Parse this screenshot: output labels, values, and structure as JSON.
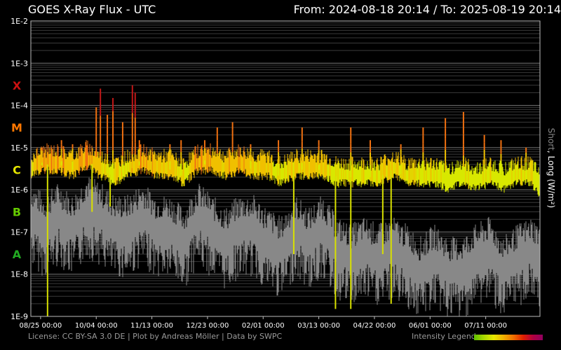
{
  "header": {
    "title": "GOES X-Ray Flux - UTC",
    "range": "From: 2024-08-18 20:14  /  To: 2025-08-19 20:14"
  },
  "chart_data": {
    "type": "line",
    "title": "GOES X-Ray Flux - UTC",
    "ylabel_short": "Short",
    "ylabel_long": ", Long (W/m²)",
    "yscale": "log",
    "ylim": [
      1e-09,
      0.01
    ],
    "y_ticks": [
      "1E-2",
      "1E-3",
      "1E-4",
      "1E-5",
      "1E-6",
      "1E-7",
      "1E-8",
      "1E-9"
    ],
    "flare_classes": [
      {
        "label": "X",
        "color": "#cc1111",
        "flux": 0.0003
      },
      {
        "label": "M",
        "color": "#ff7700",
        "flux": 3e-05
      },
      {
        "label": "C",
        "color": "#e6e600",
        "flux": 3e-06
      },
      {
        "label": "B",
        "color": "#66cc00",
        "flux": 3e-07
      },
      {
        "label": "A",
        "color": "#22aa22",
        "flux": 3e-08
      }
    ],
    "x_ticks": [
      "08/25 00:00",
      "10/04 00:00",
      "11/13 00:00",
      "12/23 00:00",
      "02/01 00:00",
      "03/13 00:00",
      "04/22 00:00",
      "06/01 00:00",
      "07/11 00:00"
    ],
    "x_tick_days": [
      7,
      47,
      87,
      127,
      167,
      207,
      247,
      287,
      327
    ],
    "x_days_total": 366,
    "grid": true,
    "series": [
      {
        "name": "Long",
        "color": "#d8e000",
        "days": [
          0,
          10,
          20,
          30,
          40,
          50,
          60,
          70,
          80,
          90,
          100,
          110,
          120,
          130,
          140,
          150,
          160,
          170,
          180,
          190,
          200,
          210,
          220,
          230,
          240,
          250,
          260,
          270,
          280,
          290,
          300,
          310,
          320,
          330,
          340,
          350,
          360,
          366
        ],
        "values": [
          3e-06,
          4e-06,
          4e-06,
          3e-06,
          5e-06,
          3e-06,
          2e-06,
          3e-06,
          4e-06,
          3e-06,
          3e-06,
          2e-06,
          4e-06,
          4e-06,
          3e-06,
          4e-06,
          3e-06,
          3e-06,
          2e-06,
          3e-06,
          3e-06,
          3e-06,
          2e-06,
          2e-06,
          2e-06,
          2e-06,
          3e-06,
          2e-06,
          2e-06,
          2e-06,
          1.5e-06,
          2e-06,
          1.5e-06,
          2e-06,
          1.5e-06,
          2e-06,
          2e-06,
          1e-06
        ]
      },
      {
        "name": "Short",
        "color": "#888888",
        "days": [
          0,
          10,
          20,
          30,
          40,
          50,
          60,
          70,
          80,
          90,
          100,
          110,
          120,
          130,
          140,
          150,
          160,
          170,
          180,
          190,
          200,
          210,
          220,
          230,
          240,
          250,
          260,
          270,
          280,
          290,
          300,
          310,
          320,
          330,
          340,
          350,
          360,
          366
        ],
        "values": [
          2e-07,
          1e-07,
          2e-07,
          1e-07,
          3e-07,
          2e-07,
          1e-07,
          1e-07,
          2e-07,
          1e-07,
          1e-07,
          5e-08,
          2e-07,
          1e-07,
          5e-08,
          1e-07,
          1e-07,
          5e-08,
          3e-08,
          1e-07,
          5e-08,
          1e-07,
          3e-08,
          2e-08,
          3e-08,
          2e-08,
          3e-08,
          2e-08,
          1e-08,
          2e-08,
          1e-08,
          1e-08,
          2e-08,
          3e-08,
          1e-08,
          2e-08,
          3e-08,
          2e-08
        ]
      }
    ],
    "flares": [
      {
        "day": 8,
        "peak": 1e-05
      },
      {
        "day": 22,
        "peak": 1.5e-05
      },
      {
        "day": 30,
        "peak": 1.2e-05
      },
      {
        "day": 47,
        "peak": 9e-05
      },
      {
        "day": 50,
        "peak": 0.00025
      },
      {
        "day": 55,
        "peak": 6e-05
      },
      {
        "day": 59,
        "peak": 0.00015
      },
      {
        "day": 66,
        "peak": 4e-05
      },
      {
        "day": 73,
        "peak": 0.0003
      },
      {
        "day": 75,
        "peak": 0.0002
      },
      {
        "day": 78,
        "peak": 1.5e-05
      },
      {
        "day": 100,
        "peak": 1.2e-05
      },
      {
        "day": 108,
        "peak": 1.5e-05
      },
      {
        "day": 125,
        "peak": 1.5e-05
      },
      {
        "day": 134,
        "peak": 3e-05
      },
      {
        "day": 145,
        "peak": 4e-05
      },
      {
        "day": 158,
        "peak": 1.2e-05
      },
      {
        "day": 178,
        "peak": 1.5e-05
      },
      {
        "day": 195,
        "peak": 3e-05
      },
      {
        "day": 207,
        "peak": 1.5e-05
      },
      {
        "day": 230,
        "peak": 3e-05
      },
      {
        "day": 244,
        "peak": 1.5e-05
      },
      {
        "day": 266,
        "peak": 1.2e-05
      },
      {
        "day": 282,
        "peak": 3e-05
      },
      {
        "day": 298,
        "peak": 5e-05
      },
      {
        "day": 311,
        "peak": 7e-05
      },
      {
        "day": 326,
        "peak": 2e-05
      },
      {
        "day": 338,
        "peak": 1.5e-05
      },
      {
        "day": 356,
        "peak": 1e-05
      }
    ],
    "dips": [
      {
        "day": 12,
        "low": 1e-09
      },
      {
        "day": 44,
        "low": 3e-07
      },
      {
        "day": 57,
        "low": 4e-07
      },
      {
        "day": 189,
        "low": 3e-08
      },
      {
        "day": 219,
        "low": 1.5e-09
      },
      {
        "day": 230,
        "low": 1.5e-09
      },
      {
        "day": 253,
        "low": 3e-08
      },
      {
        "day": 259,
        "low": 2e-09
      }
    ]
  },
  "footer": {
    "license": "License: CC BY-SA 3.0 DE | Plot by Andreas Möller | Data by SWPC",
    "legend_label": "Intensity Legend"
  }
}
